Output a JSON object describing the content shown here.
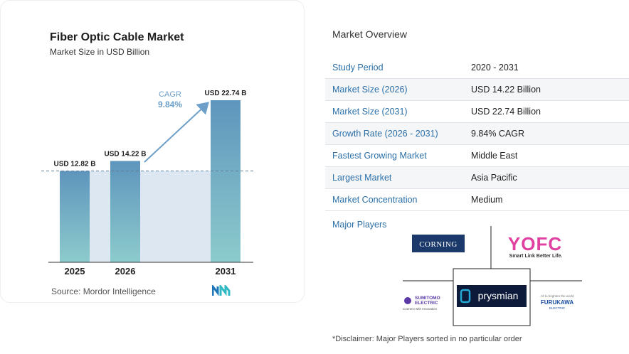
{
  "chart_card": {
    "title": "Fiber Optic Cable Market",
    "subtitle": "Market Size in USD Billion",
    "source": "Source: Mordor Intelligence",
    "cagr_label": "CAGR",
    "cagr_value": "9.84%"
  },
  "chart_data": {
    "type": "bar",
    "title": "Fiber Optic Cable Market",
    "subtitle": "Market Size in USD Billion",
    "categories": [
      "2025",
      "2026",
      "2031"
    ],
    "values": [
      12.82,
      14.22,
      22.74
    ],
    "data_labels": [
      "USD 12.82 B",
      "USD 14.22 B",
      "USD 22.74 B"
    ],
    "ylabel": "",
    "xlabel": "",
    "ylim": [
      0,
      25
    ],
    "grid": false,
    "annotation": "CAGR 9.84%",
    "colors": {
      "bar_top": "#5e95bd",
      "bar_bottom": "#8ccbcc",
      "band": "#dde7f1",
      "arrow": "#6e9fc8",
      "cagr": "#6b9ec8"
    }
  },
  "overview": {
    "title": "Market Overview",
    "rows": [
      {
        "key": "Study Period",
        "value": "2020 - 2031"
      },
      {
        "key": "Market Size (2026)",
        "value": "USD 14.22 Billion"
      },
      {
        "key": "Market Size (2031)",
        "value": "USD 22.74 Billion"
      },
      {
        "key": "Growth Rate (2026 - 2031)",
        "value": "9.84% CAGR"
      },
      {
        "key": "Fastest Growing Market",
        "value": "Middle East"
      },
      {
        "key": "Largest Market",
        "value": "Asia Pacific"
      },
      {
        "key": "Market Concentration",
        "value": "Medium"
      }
    ],
    "major_players_title": "Major Players",
    "players": {
      "corning": "CORNING",
      "yofc": "YOFC",
      "yofc_tagline": "Smart Link Better Life.",
      "prysmian": "prysmian",
      "sumitomo_1": "SUMITOMO",
      "sumitomo_2": "ELECTRIC",
      "sumitomo_tag": "Connect with Innovation",
      "furukawa_tag": "All to brighten the world",
      "furukawa_1": "FURUKAWA",
      "furukawa_2": "ELECTRIC"
    },
    "disclaimer": "*Disclaimer: Major Players sorted in no particular order"
  }
}
